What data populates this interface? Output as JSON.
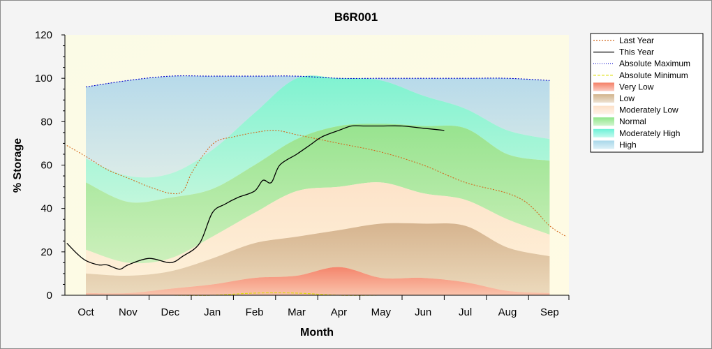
{
  "chart_data": {
    "type": "area",
    "title": "B6R001",
    "xlabel": "Month",
    "ylabel": "% Storage",
    "ylim": [
      0,
      120
    ],
    "yticks": [
      0,
      20,
      40,
      60,
      80,
      100,
      120
    ],
    "grid": false,
    "legend_position": "right",
    "x": [
      "Oct",
      "Nov",
      "Dec",
      "Jan",
      "Feb",
      "Mar",
      "Apr",
      "May",
      "Jun",
      "Jul",
      "Aug",
      "Sep"
    ],
    "band_boundaries": {
      "very_low_upper": [
        1,
        1,
        3,
        5,
        8,
        9,
        13,
        8,
        8,
        6,
        2,
        1
      ],
      "low_upper": [
        10,
        9,
        11,
        17,
        24,
        27,
        30,
        33,
        33,
        32,
        22,
        18
      ],
      "moderately_low_upper": [
        21,
        15,
        17,
        27,
        38,
        48,
        50,
        52,
        47,
        44,
        35,
        28
      ],
      "normal_upper": [
        52,
        43,
        45,
        49,
        60,
        72,
        78,
        79,
        78,
        77,
        65,
        62
      ],
      "moderately_high_upper": [
        63,
        55,
        56,
        67,
        84,
        100,
        100,
        99,
        92,
        86,
        76,
        72
      ],
      "high_upper": [
        96,
        99,
        101,
        101,
        101,
        101,
        100,
        100,
        100,
        100,
        100,
        99
      ]
    },
    "series": [
      {
        "name": "Last Year",
        "color": "#d2691e",
        "style": "dotted",
        "x": [
          -0.45,
          0,
          0.5,
          1,
          1.5,
          2,
          2.3,
          2.5,
          2.8,
          3.1,
          3.5,
          4,
          4.5,
          5,
          5.5,
          6,
          7,
          8,
          9,
          10,
          10.5,
          11,
          11.4
        ],
        "values": [
          69,
          64,
          58,
          54,
          50,
          47,
          48,
          56,
          65,
          71,
          73,
          75,
          76,
          74,
          72,
          70,
          66,
          60,
          52,
          47,
          42,
          32,
          27
        ]
      },
      {
        "name": "This Year",
        "color": "#000000",
        "style": "solid",
        "x": [
          -0.45,
          -0.2,
          0,
          0.3,
          0.5,
          0.8,
          1,
          1.5,
          2,
          2.3,
          2.7,
          3,
          3.3,
          3.6,
          4,
          4.2,
          4.4,
          4.6,
          5,
          5.3,
          5.6,
          6,
          6.3,
          6.6,
          7,
          7.5,
          8,
          8.5
        ],
        "values": [
          24,
          19,
          16,
          14,
          14,
          12,
          14,
          17,
          15,
          18,
          24,
          38,
          42,
          45,
          48,
          53,
          52,
          60,
          65,
          69,
          73,
          76,
          78,
          78,
          78,
          78,
          77,
          76
        ]
      },
      {
        "name": "Absolute Maximum",
        "color": "#0000cc",
        "style": "dotted",
        "x": [
          0,
          1,
          2,
          3,
          4,
          5,
          6,
          7,
          8,
          9,
          10,
          11
        ],
        "values": [
          96,
          99,
          101,
          101,
          101,
          101,
          100,
          100,
          100,
          100,
          100,
          99
        ]
      },
      {
        "name": "Absolute Minimum",
        "color": "#dddd00",
        "style": "dashed",
        "x": [
          0,
          1,
          2,
          3,
          4,
          5,
          6,
          7,
          8,
          9,
          10,
          11
        ],
        "values": [
          0,
          0,
          0,
          0,
          1,
          1,
          0,
          0,
          0,
          0,
          0,
          0
        ]
      }
    ],
    "legend": [
      {
        "label": "Last Year",
        "kind": "line",
        "color": "#d2691e",
        "dash": "2,2"
      },
      {
        "label": "This Year",
        "kind": "line",
        "color": "#000000",
        "dash": ""
      },
      {
        "label": "Absolute Maximum",
        "kind": "line",
        "color": "#0000cc",
        "dash": "1,2"
      },
      {
        "label": "Absolute Minimum",
        "kind": "line",
        "color": "#dddd00",
        "dash": "4,2"
      },
      {
        "label": "Very Low",
        "kind": "swatch",
        "color": "#f47f66"
      },
      {
        "label": "Low",
        "kind": "swatch",
        "color": "#d2b48c"
      },
      {
        "label": "Moderately Low",
        "kind": "swatch",
        "color": "#fde0c8"
      },
      {
        "label": "Normal",
        "kind": "swatch",
        "color": "#90e68a"
      },
      {
        "label": "Moderately High",
        "kind": "swatch",
        "color": "#6cf2d6"
      },
      {
        "label": "High",
        "kind": "swatch",
        "color": "#a8d8ea"
      }
    ],
    "band_colors": {
      "very_low": "#f47f66",
      "low": "#d4b08a",
      "moderately_low": "#fde2c8",
      "normal": "#92e28a",
      "moderately_high": "#79f2d0",
      "high": "#b3d8ea"
    }
  }
}
